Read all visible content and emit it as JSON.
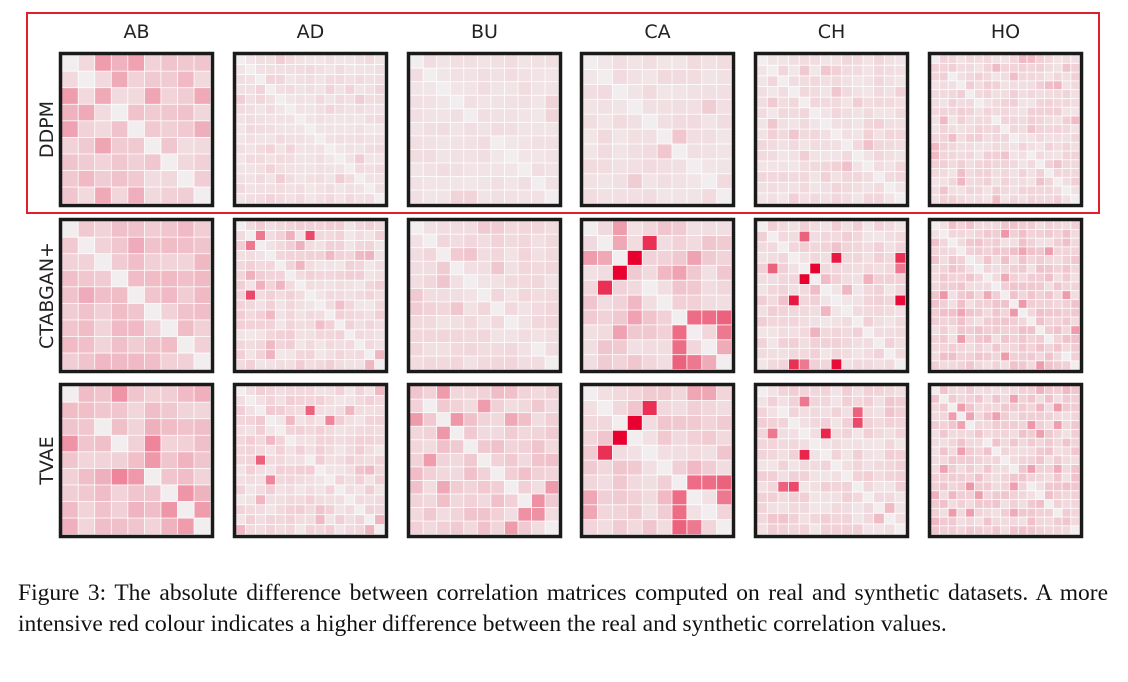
{
  "caption": "Figure 3:  The absolute difference between correlation matrices computed on real and synthetic datasets. A more intensive red colour indicates a higher difference between the real and synthetic correlation values.",
  "chart_data": {
    "type": "heatmap",
    "title": "",
    "columns": [
      "AB",
      "AD",
      "BU",
      "CA",
      "CH",
      "HO"
    ],
    "rows": [
      "DDPM",
      "CTABGAN+",
      "TVAE"
    ],
    "highlighted_row": "DDPM",
    "highlight_color": "#e01f2e",
    "color_low": "#f2f2f2",
    "color_high": "#e8002e",
    "value_range": [
      0,
      1
    ],
    "panels": [
      {
        "row": "DDPM",
        "col": "AB",
        "n": 9,
        "base": 0.08,
        "noise": 0.12,
        "seed": 11,
        "hot": [
          [
            0,
            2,
            0.35
          ],
          [
            2,
            0,
            0.35
          ],
          [
            2,
            5,
            0.32
          ],
          [
            5,
            2,
            0.32
          ],
          [
            2,
            8,
            0.3
          ],
          [
            8,
            2,
            0.3
          ],
          [
            4,
            8,
            0.28
          ],
          [
            8,
            4,
            0.28
          ],
          [
            2,
            2,
            0.3
          ]
        ]
      },
      {
        "row": "DDPM",
        "col": "AD",
        "n": 15,
        "base": 0.05,
        "noise": 0.05,
        "seed": 12,
        "hot": []
      },
      {
        "row": "DDPM",
        "col": "BU",
        "n": 11,
        "base": 0.05,
        "noise": 0.04,
        "seed": 13,
        "hot": []
      },
      {
        "row": "DDPM",
        "col": "CA",
        "n": 10,
        "base": 0.05,
        "noise": 0.05,
        "seed": 14,
        "hot": [
          [
            6,
            5,
            0.18
          ],
          [
            5,
            6,
            0.18
          ]
        ]
      },
      {
        "row": "DDPM",
        "col": "CH",
        "n": 14,
        "base": 0.05,
        "noise": 0.07,
        "seed": 15,
        "hot": [
          [
            4,
            9,
            0.15
          ],
          [
            9,
            4,
            0.15
          ]
        ]
      },
      {
        "row": "DDPM",
        "col": "HO",
        "n": 17,
        "base": 0.06,
        "noise": 0.09,
        "seed": 16,
        "hot": []
      },
      {
        "row": "CTABGAN+",
        "col": "AB",
        "n": 9,
        "base": 0.12,
        "noise": 0.12,
        "seed": 21,
        "hot": []
      },
      {
        "row": "CTABGAN+",
        "col": "AD",
        "n": 15,
        "base": 0.05,
        "noise": 0.1,
        "seed": 22,
        "hot": [
          [
            1,
            7,
            0.7
          ],
          [
            7,
            1,
            0.7
          ],
          [
            1,
            2,
            0.5
          ],
          [
            2,
            1,
            0.5
          ]
        ]
      },
      {
        "row": "CTABGAN+",
        "col": "BU",
        "n": 11,
        "base": 0.06,
        "noise": 0.06,
        "seed": 23,
        "hot": []
      },
      {
        "row": "CTABGAN+",
        "col": "CA",
        "n": 10,
        "base": 0.07,
        "noise": 0.12,
        "seed": 24,
        "hot": [
          [
            2,
            3,
            1.0
          ],
          [
            3,
            2,
            1.0
          ],
          [
            1,
            4,
            0.8
          ],
          [
            4,
            1,
            0.8
          ],
          [
            6,
            7,
            0.55
          ],
          [
            7,
            6,
            0.55
          ],
          [
            6,
            8,
            0.55
          ],
          [
            8,
            6,
            0.55
          ],
          [
            6,
            9,
            0.6
          ],
          [
            9,
            6,
            0.6
          ],
          [
            7,
            9,
            0.5
          ],
          [
            9,
            7,
            0.5
          ],
          [
            2,
            0,
            0.35
          ],
          [
            0,
            2,
            0.35
          ]
        ]
      },
      {
        "row": "CTABGAN+",
        "col": "CH",
        "n": 14,
        "base": 0.05,
        "noise": 0.1,
        "seed": 25,
        "hot": [
          [
            4,
            5,
            1.0
          ],
          [
            5,
            4,
            1.0
          ],
          [
            3,
            7,
            0.9
          ],
          [
            7,
            3,
            0.9
          ],
          [
            13,
            7,
            0.95
          ],
          [
            7,
            13,
            0.95
          ],
          [
            3,
            13,
            0.8
          ],
          [
            13,
            3,
            0.8
          ],
          [
            4,
            1,
            0.6
          ],
          [
            1,
            4,
            0.6
          ],
          [
            4,
            13,
            0.5
          ],
          [
            13,
            4,
            0.5
          ]
        ]
      },
      {
        "row": "CTABGAN+",
        "col": "HO",
        "n": 17,
        "base": 0.07,
        "noise": 0.14,
        "seed": 26,
        "hot": []
      },
      {
        "row": "TVAE",
        "col": "AB",
        "n": 9,
        "base": 0.12,
        "noise": 0.16,
        "seed": 31,
        "hot": [
          [
            5,
            3,
            0.45
          ],
          [
            3,
            5,
            0.45
          ],
          [
            7,
            8,
            0.35
          ],
          [
            8,
            7,
            0.35
          ]
        ]
      },
      {
        "row": "TVAE",
        "col": "AD",
        "n": 15,
        "base": 0.05,
        "noise": 0.1,
        "seed": 32,
        "hot": [
          [
            2,
            7,
            0.6
          ],
          [
            7,
            2,
            0.6
          ],
          [
            3,
            9,
            0.45
          ],
          [
            9,
            3,
            0.45
          ]
        ]
      },
      {
        "row": "TVAE",
        "col": "BU",
        "n": 11,
        "base": 0.08,
        "noise": 0.14,
        "seed": 33,
        "hot": [
          [
            5,
            1,
            0.35
          ],
          [
            1,
            5,
            0.35
          ],
          [
            9,
            8,
            0.4
          ],
          [
            8,
            9,
            0.4
          ],
          [
            9,
            9,
            0.4
          ]
        ]
      },
      {
        "row": "TVAE",
        "col": "CA",
        "n": 10,
        "base": 0.07,
        "noise": 0.12,
        "seed": 34,
        "hot": [
          [
            2,
            3,
            1.0
          ],
          [
            3,
            2,
            1.0
          ],
          [
            1,
            4,
            0.8
          ],
          [
            4,
            1,
            0.8
          ],
          [
            6,
            7,
            0.55
          ],
          [
            7,
            6,
            0.55
          ],
          [
            6,
            8,
            0.55
          ],
          [
            8,
            6,
            0.55
          ],
          [
            6,
            9,
            0.6
          ],
          [
            9,
            6,
            0.6
          ],
          [
            7,
            9,
            0.5
          ],
          [
            9,
            7,
            0.5
          ]
        ]
      },
      {
        "row": "TVAE",
        "col": "CH",
        "n": 14,
        "base": 0.05,
        "noise": 0.1,
        "seed": 35,
        "hot": [
          [
            4,
            6,
            0.85
          ],
          [
            6,
            4,
            0.85
          ],
          [
            3,
            9,
            0.7
          ],
          [
            9,
            3,
            0.7
          ],
          [
            2,
            9,
            0.6
          ],
          [
            9,
            2,
            0.6
          ],
          [
            4,
            1,
            0.5
          ],
          [
            1,
            4,
            0.5
          ]
        ]
      },
      {
        "row": "TVAE",
        "col": "HO",
        "n": 17,
        "base": 0.07,
        "noise": 0.14,
        "seed": 36,
        "hot": []
      }
    ]
  }
}
